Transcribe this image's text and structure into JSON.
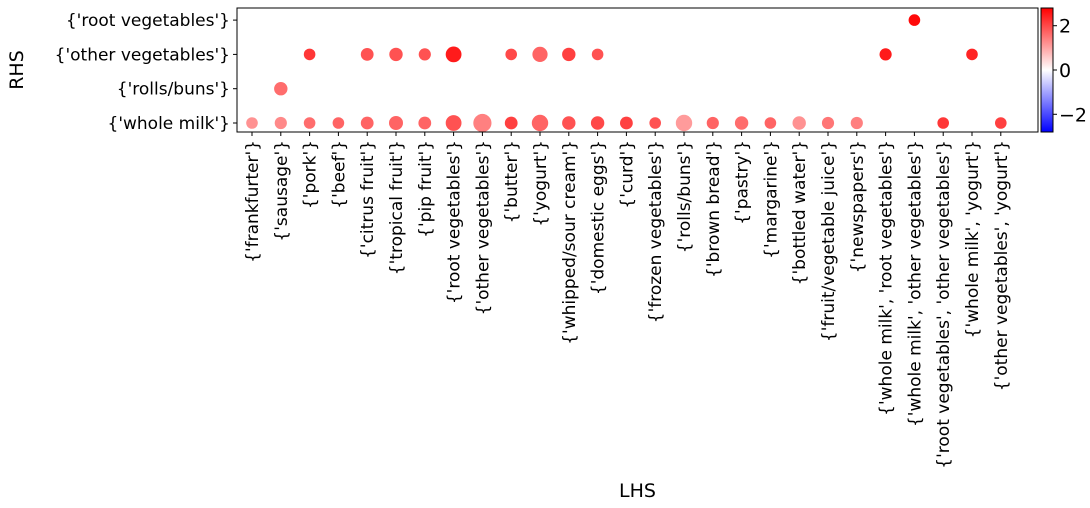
{
  "chart_data": {
    "type": "scatter",
    "title": "",
    "xlabel": "LHS",
    "ylabel": "RHS",
    "x_categories": [
      "{'frankfurter'}",
      "{'sausage'}",
      "{'pork'}",
      "{'beef'}",
      "{'citrus fruit'}",
      "{'tropical fruit'}",
      "{'pip fruit'}",
      "{'root vegetables'}",
      "{'other vegetables'}",
      "{'butter'}",
      "{'yogurt'}",
      "{'whipped/sour cream'}",
      "{'domestic eggs'}",
      "{'curd'}",
      "{'frozen vegetables'}",
      "{'rolls/buns'}",
      "{'brown bread'}",
      "{'pastry'}",
      "{'margarine'}",
      "{'bottled water'}",
      "{'fruit/vegetable juice'}",
      "{'newspapers'}",
      "{'whole milk', 'root vegetables'}",
      "{'whole milk', 'other vegetables'}",
      "{'root vegetables', 'other vegetables'}",
      "{'whole milk', 'yogurt'}",
      "{'other vegetables', 'yogurt'}"
    ],
    "y_categories": [
      "{'whole milk'}",
      "{'rolls/buns'}",
      "{'other vegetables'}",
      "{'root vegetables'}"
    ],
    "colorbar": {
      "min": -2.8,
      "max": 2.8,
      "ticks": [
        -2,
        0,
        2
      ],
      "colormap": "bwr"
    },
    "points": [
      {
        "x": "{'frankfurter'}",
        "y": "{'whole milk'}",
        "color_value": 1.2,
        "size": 0.3
      },
      {
        "x": "{'sausage'}",
        "y": "{'whole milk'}",
        "color_value": 1.3,
        "size": 0.35
      },
      {
        "x": "{'pork'}",
        "y": "{'whole milk'}",
        "color_value": 1.6,
        "size": 0.3
      },
      {
        "x": "{'beef'}",
        "y": "{'whole milk'}",
        "color_value": 1.7,
        "size": 0.3
      },
      {
        "x": "{'citrus fruit'}",
        "y": "{'whole milk'}",
        "color_value": 1.7,
        "size": 0.4
      },
      {
        "x": "{'tropical fruit'}",
        "y": "{'whole milk'}",
        "color_value": 1.7,
        "size": 0.5
      },
      {
        "x": "{'pip fruit'}",
        "y": "{'whole milk'}",
        "color_value": 1.7,
        "size": 0.4
      },
      {
        "x": "{'root vegetables'}",
        "y": "{'whole milk'}",
        "color_value": 1.9,
        "size": 0.65
      },
      {
        "x": "{'other vegetables'}",
        "y": "{'whole milk'}",
        "color_value": 1.4,
        "size": 0.85
      },
      {
        "x": "{'butter'}",
        "y": "{'whole milk'}",
        "color_value": 2.1,
        "size": 0.4
      },
      {
        "x": "{'yogurt'}",
        "y": "{'whole milk'}",
        "color_value": 1.7,
        "size": 0.7
      },
      {
        "x": "{'whipped/sour cream'}",
        "y": "{'whole milk'}",
        "color_value": 1.9,
        "size": 0.45
      },
      {
        "x": "{'domestic eggs'}",
        "y": "{'whole milk'}",
        "color_value": 2.0,
        "size": 0.45
      },
      {
        "x": "{'curd'}",
        "y": "{'whole milk'}",
        "color_value": 2.1,
        "size": 0.4
      },
      {
        "x": "{'frozen vegetables'}",
        "y": "{'whole milk'}",
        "color_value": 1.9,
        "size": 0.3
      },
      {
        "x": "{'rolls/buns'}",
        "y": "{'whole milk'}",
        "color_value": 1.1,
        "size": 0.7
      },
      {
        "x": "{'brown bread'}",
        "y": "{'whole milk'}",
        "color_value": 1.7,
        "size": 0.35
      },
      {
        "x": "{'pastry'}",
        "y": "{'whole milk'}",
        "color_value": 1.6,
        "size": 0.45
      },
      {
        "x": "{'margarine'}",
        "y": "{'whole milk'}",
        "color_value": 1.7,
        "size": 0.3
      },
      {
        "x": "{'bottled water'}",
        "y": "{'whole milk'}",
        "color_value": 1.2,
        "size": 0.45
      },
      {
        "x": "{'fruit/vegetable juice'}",
        "y": "{'whole milk'}",
        "color_value": 1.5,
        "size": 0.35
      },
      {
        "x": "{'newspapers'}",
        "y": "{'whole milk'}",
        "color_value": 1.4,
        "size": 0.35
      },
      {
        "x": "{'root vegetables', 'other vegetables'}",
        "y": "{'whole milk'}",
        "color_value": 2.2,
        "size": 0.3
      },
      {
        "x": "{'other vegetables', 'yogurt'}",
        "y": "{'whole milk'}",
        "color_value": 2.1,
        "size": 0.3
      },
      {
        "x": "{'sausage'}",
        "y": "{'rolls/buns'}",
        "color_value": 1.6,
        "size": 0.45
      },
      {
        "x": "{'pork'}",
        "y": "{'other vegetables'}",
        "color_value": 2.2,
        "size": 0.3
      },
      {
        "x": "{'citrus fruit'}",
        "y": "{'other vegetables'}",
        "color_value": 1.9,
        "size": 0.4
      },
      {
        "x": "{'tropical fruit'}",
        "y": "{'other vegetables'}",
        "color_value": 1.9,
        "size": 0.45
      },
      {
        "x": "{'pip fruit'}",
        "y": "{'other vegetables'}",
        "color_value": 1.9,
        "size": 0.35
      },
      {
        "x": "{'root vegetables'}",
        "y": "{'other vegetables'}",
        "color_value": 2.5,
        "size": 0.65
      },
      {
        "x": "{'butter'}",
        "y": "{'other vegetables'}",
        "color_value": 2.0,
        "size": 0.3
      },
      {
        "x": "{'yogurt'}",
        "y": "{'other vegetables'}",
        "color_value": 1.7,
        "size": 0.6
      },
      {
        "x": "{'whipped/sour cream'}",
        "y": "{'other vegetables'}",
        "color_value": 2.1,
        "size": 0.45
      },
      {
        "x": "{'domestic eggs'}",
        "y": "{'other vegetables'}",
        "color_value": 1.9,
        "size": 0.3
      },
      {
        "x": "{'whole milk', 'root vegetables'}",
        "y": "{'other vegetables'}",
        "color_value": 2.5,
        "size": 0.35
      },
      {
        "x": "{'whole milk', 'yogurt'}",
        "y": "{'other vegetables'}",
        "color_value": 2.4,
        "size": 0.3
      },
      {
        "x": "{'whole milk', 'other vegetables'}",
        "y": "{'root vegetables'}",
        "color_value": 2.7,
        "size": 0.3
      }
    ]
  }
}
